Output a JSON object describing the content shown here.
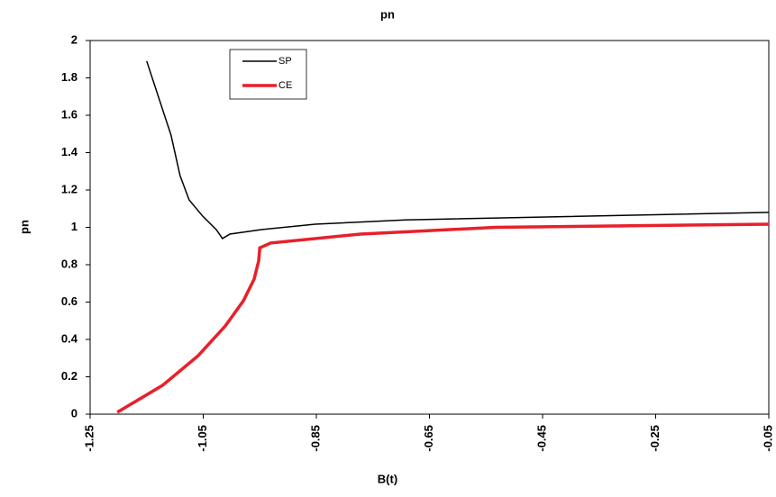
{
  "chart_data": {
    "type": "line",
    "title": "pn",
    "xlabel": "B(t)",
    "ylabel": "pn",
    "xlim": [
      -1.25,
      -0.05
    ],
    "xticks": [
      -1.25,
      -1.05,
      -0.85,
      -0.65,
      -0.45,
      -0.25,
      -0.05
    ],
    "ylim": [
      0,
      2
    ],
    "yticks": [
      0,
      0.2,
      0.4,
      0.6,
      0.8,
      1,
      1.2,
      1.4,
      1.6,
      1.8,
      2
    ],
    "grid": false,
    "legend": "upper left",
    "series": [
      {
        "name": "SP",
        "color": "#000000",
        "x": [
          -1.15,
          -1.107,
          -1.091,
          -1.075,
          -1.051,
          -1.027,
          -1.016,
          -1.003,
          -0.947,
          -0.852,
          -0.692,
          -0.453,
          -0.05
        ],
        "values": [
          1.89,
          1.494,
          1.277,
          1.147,
          1.06,
          0.988,
          0.94,
          0.964,
          0.988,
          1.017,
          1.04,
          1.055,
          1.08
        ]
      },
      {
        "name": "CE",
        "color": "#e8202a",
        "x": [
          -1.202,
          -1.122,
          -1.059,
          -1.011,
          -0.979,
          -0.96,
          -0.952,
          -0.95,
          -0.931,
          -0.772,
          -0.533,
          -0.05
        ],
        "values": [
          0.01,
          0.154,
          0.313,
          0.472,
          0.607,
          0.723,
          0.82,
          0.89,
          0.916,
          0.964,
          1.0,
          1.017
        ]
      }
    ]
  }
}
